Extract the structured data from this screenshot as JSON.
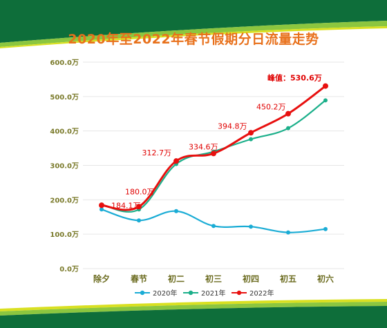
{
  "chart_data": {
    "type": "line",
    "title": "2020年至2022年春节假期分日流量走势",
    "categories": [
      "除夕",
      "春节",
      "初二",
      "初三",
      "初四",
      "初五",
      "初六"
    ],
    "y_ticks": [
      "0.0万",
      "100.0万",
      "200.0万",
      "300.0万",
      "400.0万",
      "500.0万",
      "600.0万"
    ],
    "ylim": [
      0,
      600
    ],
    "grid": true,
    "legend_position": "bottom",
    "series": [
      {
        "name": "2020年",
        "color": "#1AACD5",
        "values": [
          172,
          140,
          167,
          124,
          122,
          105,
          115
        ]
      },
      {
        "name": "2021年",
        "color": "#1BAF8A",
        "values": [
          186,
          172,
          304,
          340,
          376,
          408,
          489
        ]
      },
      {
        "name": "2022年",
        "color": "#E8100F",
        "values": [
          184.1,
          180.0,
          312.7,
          334.6,
          394.8,
          450.2,
          530.6
        ]
      }
    ],
    "data_labels": [
      {
        "series": 2,
        "index": 0,
        "text": "184.1万"
      },
      {
        "series": 2,
        "index": 1,
        "text": "180.0万"
      },
      {
        "series": 2,
        "index": 2,
        "text": "312.7万"
      },
      {
        "series": 2,
        "index": 3,
        "text": "334.6万"
      },
      {
        "series": 2,
        "index": 4,
        "text": "394.8万"
      },
      {
        "series": 2,
        "index": 5,
        "text": "450.2万"
      },
      {
        "series": 2,
        "index": 6,
        "text": "峰值：530.6万"
      }
    ]
  }
}
